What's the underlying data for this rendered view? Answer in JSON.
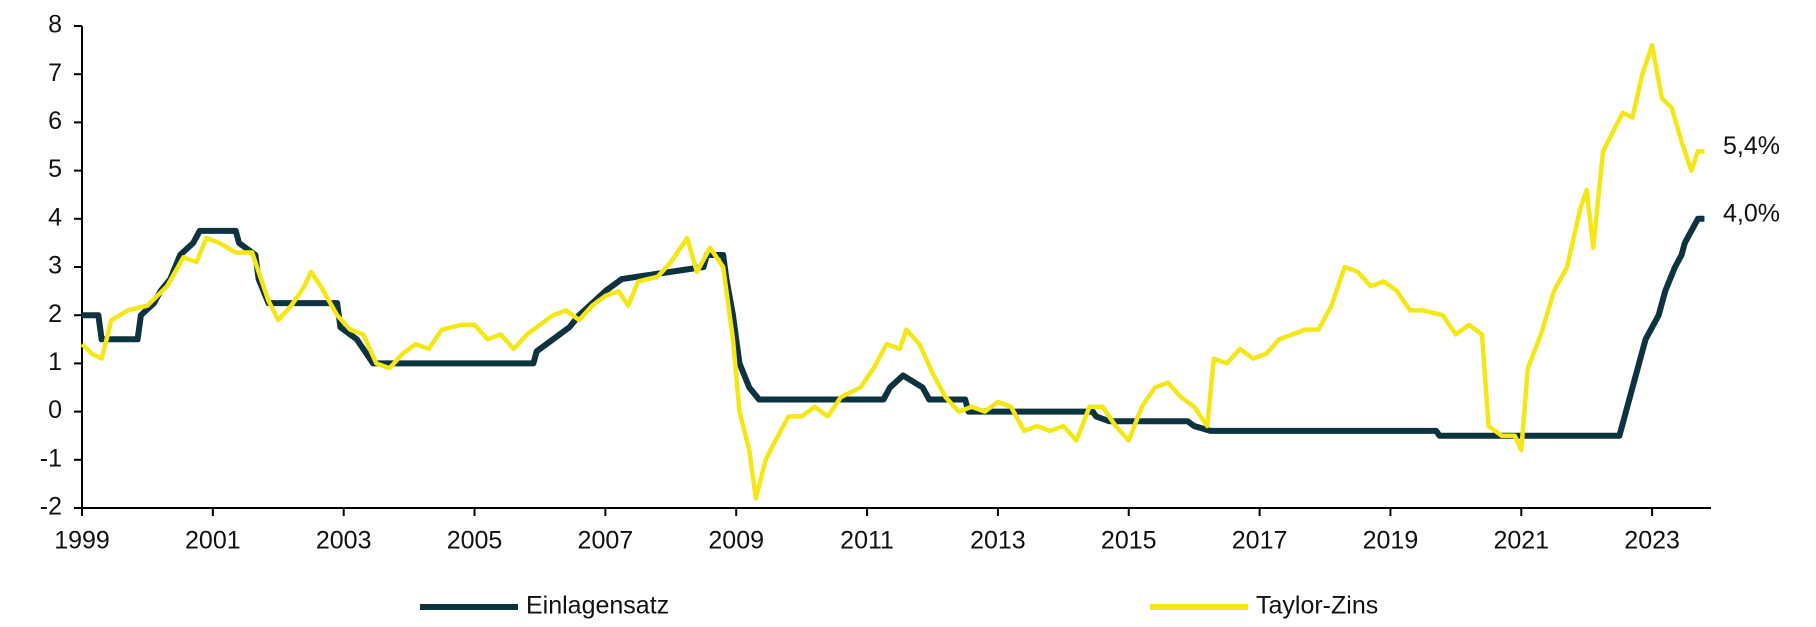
{
  "chart_data": {
    "type": "line",
    "xlim": [
      1999,
      2023.9
    ],
    "xticks": [
      1999,
      2001,
      2003,
      2005,
      2007,
      2009,
      2011,
      2013,
      2015,
      2017,
      2019,
      2021,
      2023
    ],
    "ylim": [
      -2,
      8
    ],
    "yticks": [
      -2,
      -1,
      0,
      1,
      2,
      3,
      4,
      5,
      6,
      7,
      8
    ],
    "grid": false,
    "legend": "bottom",
    "series": [
      {
        "name": "Einlagensatz",
        "color": "#0d3340",
        "x": [
          1999.0,
          1999.25,
          1999.3,
          1999.85,
          1999.9,
          2000.1,
          2000.2,
          2000.35,
          2000.5,
          2000.7,
          2000.8,
          2001.35,
          2001.4,
          2001.65,
          2001.7,
          2001.85,
          2002.9,
          2002.95,
          2003.2,
          2003.45,
          2005.9,
          2005.95,
          2006.2,
          2006.45,
          2006.6,
          2006.8,
          2007.0,
          2007.25,
          2008.5,
          2008.55,
          2008.8,
          2008.85,
          2008.95,
          2009.05,
          2009.2,
          2009.35,
          2011.25,
          2011.35,
          2011.55,
          2011.85,
          2011.95,
          2012.5,
          2012.55,
          2014.45,
          2014.5,
          2014.7,
          2015.9,
          2016.0,
          2016.25,
          2019.7,
          2019.75,
          2022.5,
          2022.6,
          2022.75,
          2022.9,
          2023.1,
          2023.2,
          2023.35,
          2023.45,
          2023.5,
          2023.6,
          2023.7,
          2023.8
        ],
        "values": [
          2.0,
          2.0,
          1.5,
          1.5,
          2.0,
          2.25,
          2.5,
          2.75,
          3.25,
          3.5,
          3.75,
          3.75,
          3.5,
          3.25,
          2.75,
          2.25,
          2.25,
          1.75,
          1.5,
          1.0,
          1.0,
          1.25,
          1.5,
          1.75,
          2.0,
          2.25,
          2.5,
          2.75,
          3.0,
          3.25,
          3.25,
          2.75,
          2.0,
          1.0,
          0.5,
          0.25,
          0.25,
          0.5,
          0.75,
          0.5,
          0.25,
          0.25,
          0,
          0,
          -0.1,
          -0.2,
          -0.2,
          -0.3,
          -0.4,
          -0.4,
          -0.5,
          -0.5,
          0,
          0.75,
          1.5,
          2.0,
          2.5,
          3.0,
          3.25,
          3.5,
          3.75,
          4.0,
          4.0
        ]
      },
      {
        "name": "Taylor-Zins",
        "color": "#f5e616",
        "x": [
          1999.0,
          1999.15,
          1999.3,
          1999.45,
          1999.7,
          2000.0,
          2000.3,
          2000.55,
          2000.75,
          2000.9,
          2001.1,
          2001.35,
          2001.6,
          2001.85,
          2002.0,
          2002.2,
          2002.4,
          2002.5,
          2002.65,
          2002.9,
          2003.1,
          2003.3,
          2003.5,
          2003.7,
          2003.9,
          2004.1,
          2004.3,
          2004.5,
          2004.8,
          2005.0,
          2005.2,
          2005.4,
          2005.6,
          2005.8,
          2006.0,
          2006.2,
          2006.4,
          2006.6,
          2006.8,
          2007.0,
          2007.2,
          2007.35,
          2007.5,
          2007.8,
          2008.0,
          2008.25,
          2008.4,
          2008.6,
          2008.8,
          2008.95,
          2009.05,
          2009.2,
          2009.3,
          2009.45,
          2009.6,
          2009.8,
          2010.0,
          2010.2,
          2010.4,
          2010.6,
          2010.9,
          2011.1,
          2011.3,
          2011.5,
          2011.6,
          2011.8,
          2012.0,
          2012.2,
          2012.4,
          2012.6,
          2012.8,
          2013.0,
          2013.2,
          2013.4,
          2013.6,
          2013.8,
          2014.0,
          2014.2,
          2014.4,
          2014.6,
          2014.8,
          2015.0,
          2015.2,
          2015.4,
          2015.6,
          2015.8,
          2016.0,
          2016.2,
          2016.3,
          2016.5,
          2016.7,
          2016.9,
          2017.1,
          2017.3,
          2017.5,
          2017.7,
          2017.9,
          2018.1,
          2018.3,
          2018.5,
          2018.7,
          2018.9,
          2019.1,
          2019.3,
          2019.5,
          2019.8,
          2020.0,
          2020.2,
          2020.4,
          2020.5,
          2020.7,
          2020.9,
          2021.0,
          2021.1,
          2021.3,
          2021.5,
          2021.7,
          2021.9,
          2022.0,
          2022.1,
          2022.25,
          2022.4,
          2022.55,
          2022.7,
          2022.85,
          2023.0,
          2023.15,
          2023.3,
          2023.45,
          2023.6,
          2023.7,
          2023.8
        ],
        "values": [
          1.4,
          1.2,
          1.1,
          1.9,
          2.1,
          2.2,
          2.6,
          3.2,
          3.1,
          3.6,
          3.5,
          3.3,
          3.3,
          2.3,
          1.9,
          2.2,
          2.6,
          2.9,
          2.6,
          2.0,
          1.7,
          1.6,
          1.0,
          0.9,
          1.2,
          1.4,
          1.3,
          1.7,
          1.8,
          1.8,
          1.5,
          1.6,
          1.3,
          1.6,
          1.8,
          2.0,
          2.1,
          1.9,
          2.2,
          2.4,
          2.5,
          2.2,
          2.7,
          2.8,
          3.1,
          3.6,
          2.9,
          3.4,
          3.0,
          1.5,
          0,
          -0.8,
          -1.8,
          -1.0,
          -0.6,
          -0.1,
          -0.1,
          0.1,
          -0.1,
          0.3,
          0.5,
          0.9,
          1.4,
          1.3,
          1.7,
          1.4,
          0.8,
          0.3,
          0.0,
          0.1,
          0.0,
          0.2,
          0.1,
          -0.4,
          -0.3,
          -0.4,
          -0.3,
          -0.6,
          0.1,
          0.1,
          -0.3,
          -0.6,
          0.1,
          0.5,
          0.6,
          0.3,
          0.1,
          -0.3,
          1.1,
          1.0,
          1.3,
          1.1,
          1.2,
          1.5,
          1.6,
          1.7,
          1.7,
          2.2,
          3.0,
          2.9,
          2.6,
          2.7,
          2.5,
          2.1,
          2.1,
          2.0,
          1.6,
          1.8,
          1.6,
          -0.3,
          -0.5,
          -0.5,
          -0.8,
          0.9,
          1.6,
          2.5,
          3.0,
          4.2,
          4.6,
          3.4,
          5.4,
          5.8,
          6.2,
          6.1,
          7.0,
          7.6,
          6.5,
          6.3,
          5.6,
          5.0,
          5.4,
          5.4
        ]
      }
    ],
    "annotations": [
      {
        "label": "5,4%",
        "y": 5.4
      },
      {
        "label": "4,0%",
        "y": 4.0
      }
    ]
  }
}
